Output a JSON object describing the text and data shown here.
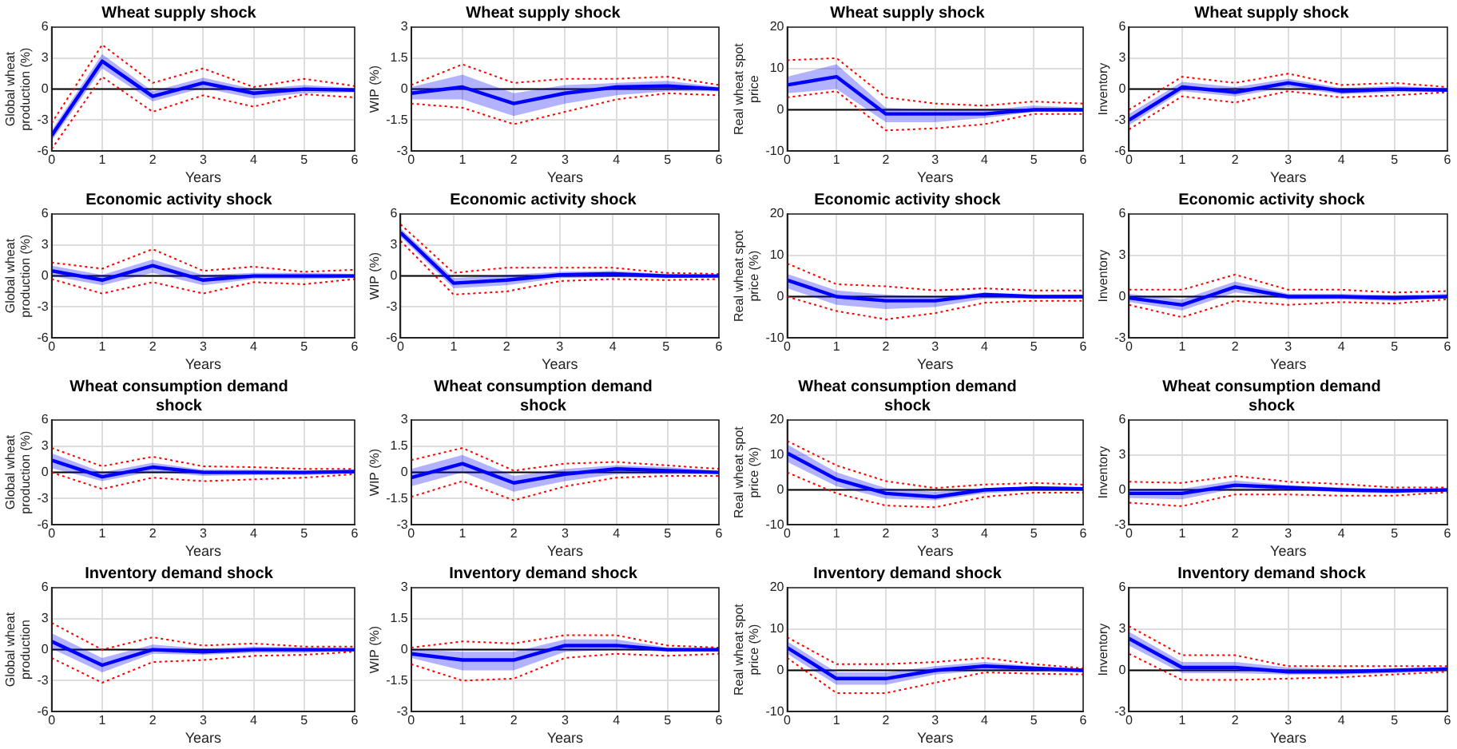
{
  "chart_data": [
    {
      "type": "line",
      "title": "Wheat supply shock",
      "xlabel": "Years",
      "ylabel": "Global wheat production (%)",
      "x": [
        0,
        1,
        2,
        3,
        4,
        5,
        6
      ],
      "xlim": [
        0,
        6
      ],
      "xticks": [
        0,
        1,
        2,
        3,
        4,
        5,
        6
      ],
      "ylim": [
        -6,
        6
      ],
      "yticks": [
        -6,
        -3,
        0,
        3,
        6
      ],
      "grid": true,
      "legend": false,
      "ref_lines": [
        {
          "axis": "y",
          "value": 0,
          "color": "#000000"
        }
      ],
      "series": [
        {
          "color": "#0000ff",
          "values": [
            -4.5,
            2.7,
            -0.7,
            0.6,
            -0.4,
            0,
            -0.1
          ],
          "lower": [
            -5,
            2,
            -1.2,
            0.1,
            -0.9,
            -0.4,
            -0.3
          ],
          "upper": [
            -4,
            3.4,
            -0.2,
            1.1,
            0,
            0.4,
            0.1
          ]
        },
        {
          "color": "#ff0000",
          "line_style": "dotted",
          "values": [
            -5.8,
            1.2,
            -2.2,
            -0.6,
            -1.7,
            -0.5,
            -0.8
          ]
        },
        {
          "color": "#ff0000",
          "line_style": "dotted",
          "values": [
            -3.3,
            4.3,
            0.6,
            2,
            0.2,
            1,
            0.3
          ]
        }
      ]
    },
    {
      "type": "line",
      "title": "Wheat supply shock",
      "xlabel": "Years",
      "ylabel": "WIP (%)",
      "x": [
        0,
        1,
        2,
        3,
        4,
        5,
        6
      ],
      "xlim": [
        0,
        6
      ],
      "xticks": [
        0,
        1,
        2,
        3,
        4,
        5,
        6
      ],
      "ylim": [
        -3,
        3
      ],
      "yticks": [
        -3,
        -1.5,
        0,
        1.5,
        3
      ],
      "grid": true,
      "legend": false,
      "ref_lines": [
        {
          "axis": "y",
          "value": 0,
          "color": "#000000"
        }
      ],
      "series": [
        {
          "color": "#0000ff",
          "values": [
            -0.2,
            0.1,
            -0.7,
            -0.2,
            0.1,
            0.15,
            0
          ],
          "lower": [
            -0.5,
            -0.5,
            -1.3,
            -0.7,
            -0.3,
            -0.1,
            -0.1
          ],
          "upper": [
            0.1,
            0.7,
            -0.2,
            0.2,
            0.3,
            0.4,
            0.1
          ]
        },
        {
          "color": "#ff0000",
          "line_style": "dotted",
          "values": [
            -0.7,
            -0.9,
            -1.7,
            -1.1,
            -0.5,
            -0.2,
            -0.3
          ]
        },
        {
          "color": "#ff0000",
          "line_style": "dotted",
          "values": [
            0.2,
            1.2,
            0.3,
            0.5,
            0.5,
            0.6,
            0.2
          ]
        }
      ]
    },
    {
      "type": "line",
      "title": "Wheat supply shock",
      "xlabel": "Years",
      "ylabel": "Real wheat spot price",
      "x": [
        0,
        1,
        2,
        3,
        4,
        5,
        6
      ],
      "xlim": [
        0,
        6
      ],
      "xticks": [
        0,
        1,
        2,
        3,
        4,
        5,
        6
      ],
      "ylim": [
        -10,
        20
      ],
      "yticks": [
        -10,
        0,
        10,
        20
      ],
      "grid": true,
      "legend": false,
      "ref_lines": [
        {
          "axis": "y",
          "value": 0,
          "color": "#000000"
        }
      ],
      "series": [
        {
          "color": "#0000ff",
          "values": [
            6,
            8,
            -1,
            -1,
            -1,
            0,
            0
          ],
          "lower": [
            4,
            5,
            -3,
            -3,
            -2,
            -0.5,
            -0.5
          ],
          "upper": [
            8,
            11,
            0.5,
            0,
            0,
            1,
            0.5
          ]
        },
        {
          "color": "#ff0000",
          "line_style": "dotted",
          "values": [
            3,
            4.5,
            -5,
            -4.5,
            -3.5,
            -1,
            -1
          ]
        },
        {
          "color": "#ff0000",
          "line_style": "dotted",
          "values": [
            12,
            12.5,
            3,
            1.5,
            1,
            2,
            1.5
          ]
        }
      ]
    },
    {
      "type": "line",
      "title": "Wheat supply shock",
      "xlabel": "Years",
      "ylabel": "Inventory",
      "x": [
        0,
        1,
        2,
        3,
        4,
        5,
        6
      ],
      "xlim": [
        0,
        6
      ],
      "xticks": [
        0,
        1,
        2,
        3,
        4,
        5,
        6
      ],
      "ylim": [
        -6,
        6
      ],
      "yticks": [
        -6,
        -3,
        0,
        3,
        6
      ],
      "grid": true,
      "legend": false,
      "ref_lines": [
        {
          "axis": "y",
          "value": 0,
          "color": "#000000"
        }
      ],
      "series": [
        {
          "color": "#0000ff",
          "values": [
            -3,
            0.2,
            -0.3,
            0.6,
            -0.2,
            0,
            -0.1
          ],
          "lower": [
            -3.5,
            -0.2,
            -0.7,
            0.2,
            -0.5,
            -0.3,
            -0.2
          ],
          "upper": [
            -2.4,
            0.7,
            0.2,
            1,
            0.1,
            0.3,
            0.1
          ]
        },
        {
          "color": "#ff0000",
          "line_style": "dotted",
          "values": [
            -3.9,
            -0.7,
            -1.3,
            -0.2,
            -0.8,
            -0.6,
            -0.3
          ]
        },
        {
          "color": "#ff0000",
          "line_style": "dotted",
          "values": [
            -2,
            1.2,
            0.6,
            1.5,
            0.4,
            0.6,
            0.2
          ]
        }
      ]
    },
    {
      "type": "line",
      "title": "Economic activity shock",
      "xlabel": "Years",
      "ylabel": "Global wheat production (%)",
      "x": [
        0,
        1,
        2,
        3,
        4,
        5,
        6
      ],
      "xlim": [
        0,
        6
      ],
      "xticks": [
        0,
        1,
        2,
        3,
        4,
        5,
        6
      ],
      "ylim": [
        -6,
        6
      ],
      "yticks": [
        -6,
        -3,
        0,
        3,
        6
      ],
      "grid": true,
      "legend": false,
      "ref_lines": [
        {
          "axis": "y",
          "value": 0,
          "color": "#000000"
        }
      ],
      "series": [
        {
          "color": "#0000ff",
          "values": [
            0.5,
            -0.4,
            1,
            -0.4,
            0,
            0,
            0
          ],
          "lower": [
            0,
            -0.9,
            0.3,
            -0.9,
            -0.3,
            -0.3,
            -0.2
          ],
          "upper": [
            1,
            0.1,
            1.6,
            0.1,
            0.3,
            0.3,
            0.2
          ]
        },
        {
          "color": "#ff0000",
          "line_style": "dotted",
          "values": [
            -0.3,
            -1.7,
            -0.6,
            -1.7,
            -0.6,
            -0.8,
            -0.3
          ]
        },
        {
          "color": "#ff0000",
          "line_style": "dotted",
          "values": [
            1.3,
            0.7,
            2.6,
            0.5,
            0.9,
            0.4,
            0.6
          ]
        }
      ]
    },
    {
      "type": "line",
      "title": "Economic activity shock",
      "xlabel": "Years",
      "ylabel": "WIP (%)",
      "x": [
        0,
        1,
        2,
        3,
        4,
        5,
        6
      ],
      "xlim": [
        0,
        6
      ],
      "xticks": [
        0,
        1,
        2,
        3,
        4,
        5,
        6
      ],
      "ylim": [
        -6,
        6
      ],
      "yticks": [
        -6,
        -3,
        0,
        3,
        6
      ],
      "grid": true,
      "legend": false,
      "ref_lines": [
        {
          "axis": "y",
          "value": 0,
          "color": "#000000"
        }
      ],
      "series": [
        {
          "color": "#0000ff",
          "values": [
            4.2,
            -0.7,
            -0.4,
            0.1,
            0.2,
            0,
            0
          ],
          "lower": [
            3.8,
            -1.2,
            -0.9,
            -0.2,
            -0.1,
            -0.2,
            -0.1
          ],
          "upper": [
            4.6,
            -0.2,
            0.1,
            0.4,
            0.5,
            0.2,
            0.1
          ]
        },
        {
          "color": "#ff0000",
          "line_style": "dotted",
          "values": [
            3.4,
            -1.8,
            -1.5,
            -0.5,
            -0.3,
            -0.4,
            -0.3
          ]
        },
        {
          "color": "#ff0000",
          "line_style": "dotted",
          "values": [
            5,
            0.3,
            0.8,
            0.8,
            0.8,
            0.3,
            0.2
          ]
        }
      ]
    },
    {
      "type": "line",
      "title": "Economic activity shock",
      "xlabel": "Years",
      "ylabel": "Real wheat spot price (%)",
      "x": [
        0,
        1,
        2,
        3,
        4,
        5,
        6
      ],
      "xlim": [
        0,
        6
      ],
      "xticks": [
        0,
        1,
        2,
        3,
        4,
        5,
        6
      ],
      "ylim": [
        -10,
        20
      ],
      "yticks": [
        -10,
        0,
        10,
        20
      ],
      "grid": true,
      "legend": false,
      "ref_lines": [
        {
          "axis": "y",
          "value": 0,
          "color": "#000000"
        }
      ],
      "series": [
        {
          "color": "#0000ff",
          "values": [
            4,
            0,
            -1,
            -1,
            0.5,
            0,
            0
          ],
          "lower": [
            2,
            -2,
            -3,
            -2.5,
            -0.5,
            -0.5,
            -0.5
          ],
          "upper": [
            5.5,
            1.5,
            0.5,
            0,
            1,
            0.5,
            0.5
          ]
        },
        {
          "color": "#ff0000",
          "line_style": "dotted",
          "values": [
            0,
            -3.5,
            -5.5,
            -4,
            -1.5,
            -1,
            -1
          ]
        },
        {
          "color": "#ff0000",
          "line_style": "dotted",
          "values": [
            8,
            3,
            2.5,
            1.5,
            2,
            1.5,
            1.5
          ]
        }
      ]
    },
    {
      "type": "line",
      "title": "Economic activity shock",
      "xlabel": "Years",
      "ylabel": "Inventory",
      "x": [
        0,
        1,
        2,
        3,
        4,
        5,
        6
      ],
      "xlim": [
        0,
        6
      ],
      "xticks": [
        0,
        1,
        2,
        3,
        4,
        5,
        6
      ],
      "ylim": [
        -3,
        6
      ],
      "yticks": [
        -3,
        0,
        3,
        6
      ],
      "grid": true,
      "legend": false,
      "ref_lines": [
        {
          "axis": "y",
          "value": 0,
          "color": "#000000"
        }
      ],
      "series": [
        {
          "color": "#0000ff",
          "values": [
            -0.1,
            -0.6,
            0.7,
            0,
            0,
            -0.1,
            0
          ],
          "lower": [
            -0.4,
            -1,
            0.3,
            -0.2,
            -0.2,
            -0.3,
            -0.1
          ],
          "upper": [
            0.2,
            -0.2,
            1.1,
            0.2,
            0.2,
            0.1,
            0.2
          ]
        },
        {
          "color": "#ff0000",
          "line_style": "dotted",
          "values": [
            -0.6,
            -1.5,
            -0.3,
            -0.6,
            -0.4,
            -0.5,
            -0.2
          ]
        },
        {
          "color": "#ff0000",
          "line_style": "dotted",
          "values": [
            0.5,
            0.5,
            1.6,
            0.5,
            0.5,
            0.3,
            0.4
          ]
        }
      ]
    },
    {
      "type": "line",
      "title": "Wheat consumption demand shock",
      "xlabel": "Years",
      "ylabel": "Global wheat production (%)",
      "x": [
        0,
        1,
        2,
        3,
        4,
        5,
        6
      ],
      "xlim": [
        0,
        6
      ],
      "xticks": [
        0,
        1,
        2,
        3,
        4,
        5,
        6
      ],
      "ylim": [
        -6,
        6
      ],
      "yticks": [
        -6,
        -3,
        0,
        3,
        6
      ],
      "grid": true,
      "legend": false,
      "ref_lines": [
        {
          "axis": "y",
          "value": 0,
          "color": "#000000"
        }
      ],
      "series": [
        {
          "color": "#0000ff",
          "values": [
            1.4,
            -0.5,
            0.6,
            0,
            0,
            0,
            0.1
          ],
          "lower": [
            0.5,
            -1,
            0.1,
            -0.4,
            -0.3,
            -0.3,
            -0.1
          ],
          "upper": [
            2.2,
            0,
            1.1,
            0.3,
            0.3,
            0.2,
            0.2
          ]
        },
        {
          "color": "#ff0000",
          "line_style": "dotted",
          "values": [
            0,
            -1.9,
            -0.6,
            -1,
            -0.8,
            -0.6,
            -0.2
          ]
        },
        {
          "color": "#ff0000",
          "line_style": "dotted",
          "values": [
            2.8,
            0.7,
            1.8,
            0.7,
            0.6,
            0.4,
            0.4
          ]
        }
      ]
    },
    {
      "type": "line",
      "title": "Wheat consumption demand shock",
      "xlabel": "Years",
      "ylabel": "WIP (%)",
      "x": [
        0,
        1,
        2,
        3,
        4,
        5,
        6
      ],
      "xlim": [
        0,
        6
      ],
      "xticks": [
        0,
        1,
        2,
        3,
        4,
        5,
        6
      ],
      "ylim": [
        -3,
        3
      ],
      "yticks": [
        -3,
        -1.5,
        0,
        1.5,
        3
      ],
      "grid": true,
      "legend": false,
      "ref_lines": [
        {
          "axis": "y",
          "value": 0,
          "color": "#000000"
        }
      ],
      "series": [
        {
          "color": "#0000ff",
          "values": [
            -0.3,
            0.5,
            -0.6,
            -0.1,
            0.2,
            0.1,
            0
          ],
          "lower": [
            -0.8,
            0,
            -1.1,
            -0.5,
            -0.1,
            -0.1,
            -0.1
          ],
          "upper": [
            0.2,
            1,
            -0.2,
            0.2,
            0.4,
            0.3,
            0.1
          ]
        },
        {
          "color": "#ff0000",
          "line_style": "dotted",
          "values": [
            -1.4,
            -0.5,
            -1.6,
            -0.8,
            -0.3,
            -0.2,
            -0.2
          ]
        },
        {
          "color": "#ff0000",
          "line_style": "dotted",
          "values": [
            0.7,
            1.4,
            0.1,
            0.5,
            0.6,
            0.4,
            0.2
          ]
        }
      ]
    },
    {
      "type": "line",
      "title": "Wheat consumption demand shock",
      "xlabel": "Years",
      "ylabel": "Real wheat spot price (%)",
      "x": [
        0,
        1,
        2,
        3,
        4,
        5,
        6
      ],
      "xlim": [
        0,
        6
      ],
      "xticks": [
        0,
        1,
        2,
        3,
        4,
        5,
        6
      ],
      "ylim": [
        -10,
        20
      ],
      "yticks": [
        -10,
        0,
        10,
        20
      ],
      "grid": true,
      "legend": false,
      "ref_lines": [
        {
          "axis": "y",
          "value": 0,
          "color": "#000000"
        }
      ],
      "series": [
        {
          "color": "#0000ff",
          "values": [
            10.5,
            3,
            -1,
            -2,
            0,
            0.5,
            0.3
          ],
          "lower": [
            8,
            1,
            -2.5,
            -3,
            -1,
            -0.2,
            -0.2
          ],
          "upper": [
            13,
            5,
            0.5,
            -0.5,
            0.5,
            1,
            0.8
          ]
        },
        {
          "color": "#ff0000",
          "line_style": "dotted",
          "values": [
            5,
            -1,
            -4.5,
            -5,
            -2,
            -0.8,
            -0.8
          ]
        },
        {
          "color": "#ff0000",
          "line_style": "dotted",
          "values": [
            14,
            7,
            2.5,
            0.5,
            1.5,
            2,
            1.5
          ]
        }
      ]
    },
    {
      "type": "line",
      "title": "Wheat consumption demand shock",
      "xlabel": "Years",
      "ylabel": "Inventory",
      "x": [
        0,
        1,
        2,
        3,
        4,
        5,
        6
      ],
      "xlim": [
        0,
        6
      ],
      "xticks": [
        0,
        1,
        2,
        3,
        4,
        5,
        6
      ],
      "ylim": [
        -3,
        6
      ],
      "yticks": [
        -3,
        0,
        3,
        6
      ],
      "grid": true,
      "legend": false,
      "ref_lines": [
        {
          "axis": "y",
          "value": 0,
          "color": "#000000"
        }
      ],
      "series": [
        {
          "color": "#0000ff",
          "values": [
            -0.3,
            -0.3,
            0.4,
            0.2,
            0,
            -0.1,
            0
          ],
          "lower": [
            -0.7,
            -0.8,
            0.1,
            0,
            -0.2,
            -0.3,
            -0.1
          ],
          "upper": [
            0.1,
            0.1,
            0.8,
            0.4,
            0.2,
            0.1,
            0.1
          ]
        },
        {
          "color": "#ff0000",
          "line_style": "dotted",
          "values": [
            -1.1,
            -1.4,
            -0.4,
            -0.4,
            -0.5,
            -0.5,
            -0.2
          ]
        },
        {
          "color": "#ff0000",
          "line_style": "dotted",
          "values": [
            0.7,
            0.6,
            1.2,
            0.7,
            0.5,
            0.2,
            0.2
          ]
        }
      ]
    },
    {
      "type": "line",
      "title": "Inventory demand shock",
      "xlabel": "Years",
      "ylabel": "Global wheat production",
      "x": [
        0,
        1,
        2,
        3,
        4,
        5,
        6
      ],
      "xlim": [
        0,
        6
      ],
      "xticks": [
        0,
        1,
        2,
        3,
        4,
        5,
        6
      ],
      "ylim": [
        -6,
        6
      ],
      "yticks": [
        -6,
        -3,
        0,
        3,
        6
      ],
      "grid": true,
      "legend": false,
      "ref_lines": [
        {
          "axis": "y",
          "value": 0,
          "color": "#000000"
        }
      ],
      "series": [
        {
          "color": "#0000ff",
          "values": [
            0.8,
            -1.5,
            0,
            -0.2,
            0,
            0,
            0
          ],
          "lower": [
            0.1,
            -2.2,
            -0.4,
            -0.5,
            -0.3,
            -0.3,
            -0.1
          ],
          "upper": [
            1.6,
            -0.8,
            0.5,
            0.1,
            0.3,
            0.2,
            0.1
          ]
        },
        {
          "color": "#ff0000",
          "line_style": "dotted",
          "values": [
            -0.8,
            -3.2,
            -1.2,
            -1,
            -0.6,
            -0.5,
            -0.2
          ]
        },
        {
          "color": "#ff0000",
          "line_style": "dotted",
          "values": [
            2.6,
            0,
            1.2,
            0.4,
            0.6,
            0.3,
            0.3
          ]
        }
      ]
    },
    {
      "type": "line",
      "title": "Inventory demand shock",
      "xlabel": "Years",
      "ylabel": "WIP (%)",
      "x": [
        0,
        1,
        2,
        3,
        4,
        5,
        6
      ],
      "xlim": [
        0,
        6
      ],
      "xticks": [
        0,
        1,
        2,
        3,
        4,
        5,
        6
      ],
      "ylim": [
        -3,
        3
      ],
      "yticks": [
        -3,
        -1.5,
        0,
        1.5,
        3
      ],
      "grid": true,
      "legend": false,
      "ref_lines": [
        {
          "axis": "y",
          "value": 0,
          "color": "#000000"
        }
      ],
      "series": [
        {
          "color": "#0000ff",
          "values": [
            -0.2,
            -0.5,
            -0.5,
            0.2,
            0.2,
            0,
            0
          ],
          "lower": [
            -0.4,
            -1,
            -1,
            -0.1,
            0,
            -0.1,
            -0.1
          ],
          "upper": [
            0,
            -0.1,
            -0.1,
            0.5,
            0.5,
            0.1,
            0.1
          ]
        },
        {
          "color": "#ff0000",
          "line_style": "dotted",
          "values": [
            -0.7,
            -1.5,
            -1.4,
            -0.4,
            -0.2,
            -0.3,
            -0.2
          ]
        },
        {
          "color": "#ff0000",
          "line_style": "dotted",
          "values": [
            0.1,
            0.4,
            0.3,
            0.7,
            0.7,
            0.2,
            0.1
          ]
        }
      ]
    },
    {
      "type": "line",
      "title": "Inventory demand shock",
      "xlabel": "Years",
      "ylabel": "Real wheat spot price (%)",
      "x": [
        0,
        1,
        2,
        3,
        4,
        5,
        6
      ],
      "xlim": [
        0,
        6
      ],
      "xticks": [
        0,
        1,
        2,
        3,
        4,
        5,
        6
      ],
      "ylim": [
        -10,
        20
      ],
      "yticks": [
        -10,
        0,
        10,
        20
      ],
      "grid": true,
      "legend": false,
      "ref_lines": [
        {
          "axis": "y",
          "value": 0,
          "color": "#000000"
        }
      ],
      "series": [
        {
          "color": "#0000ff",
          "values": [
            5.5,
            -2,
            -2,
            0,
            1,
            0.5,
            0
          ],
          "lower": [
            4,
            -3.5,
            -3.5,
            -1,
            0,
            -0.3,
            -0.5
          ],
          "upper": [
            7,
            -0.5,
            -0.5,
            1,
            2,
            1,
            0.3
          ]
        },
        {
          "color": "#ff0000",
          "line_style": "dotted",
          "values": [
            3,
            -5.5,
            -5.5,
            -3,
            -0.5,
            -0.8,
            -1
          ]
        },
        {
          "color": "#ff0000",
          "line_style": "dotted",
          "values": [
            8,
            1.5,
            1.5,
            2,
            3,
            1.5,
            0.5
          ]
        }
      ]
    },
    {
      "type": "line",
      "title": "Inventory demand shock",
      "xlabel": "Years",
      "ylabel": "Inventory",
      "x": [
        0,
        1,
        2,
        3,
        4,
        5,
        6
      ],
      "xlim": [
        0,
        6
      ],
      "xticks": [
        0,
        1,
        2,
        3,
        4,
        5,
        6
      ],
      "ylim": [
        -3,
        6
      ],
      "yticks": [
        -3,
        0,
        3,
        6
      ],
      "grid": true,
      "legend": false,
      "ref_lines": [
        {
          "axis": "y",
          "value": 0,
          "color": "#000000"
        }
      ],
      "series": [
        {
          "color": "#0000ff",
          "values": [
            2.3,
            0.2,
            0.2,
            -0.1,
            -0.1,
            0,
            0.1
          ],
          "lower": [
            1.8,
            -0.2,
            -0.2,
            -0.3,
            -0.3,
            -0.2,
            0
          ],
          "upper": [
            2.8,
            0.6,
            0.6,
            0.2,
            0.1,
            0.1,
            0.2
          ]
        },
        {
          "color": "#ff0000",
          "line_style": "dotted",
          "values": [
            1.2,
            -0.7,
            -0.7,
            -0.6,
            -0.5,
            -0.3,
            -0.1
          ]
        },
        {
          "color": "#ff0000",
          "line_style": "dotted",
          "values": [
            3.2,
            1.1,
            1.1,
            0.3,
            0.3,
            0.3,
            0.3
          ]
        }
      ]
    }
  ]
}
